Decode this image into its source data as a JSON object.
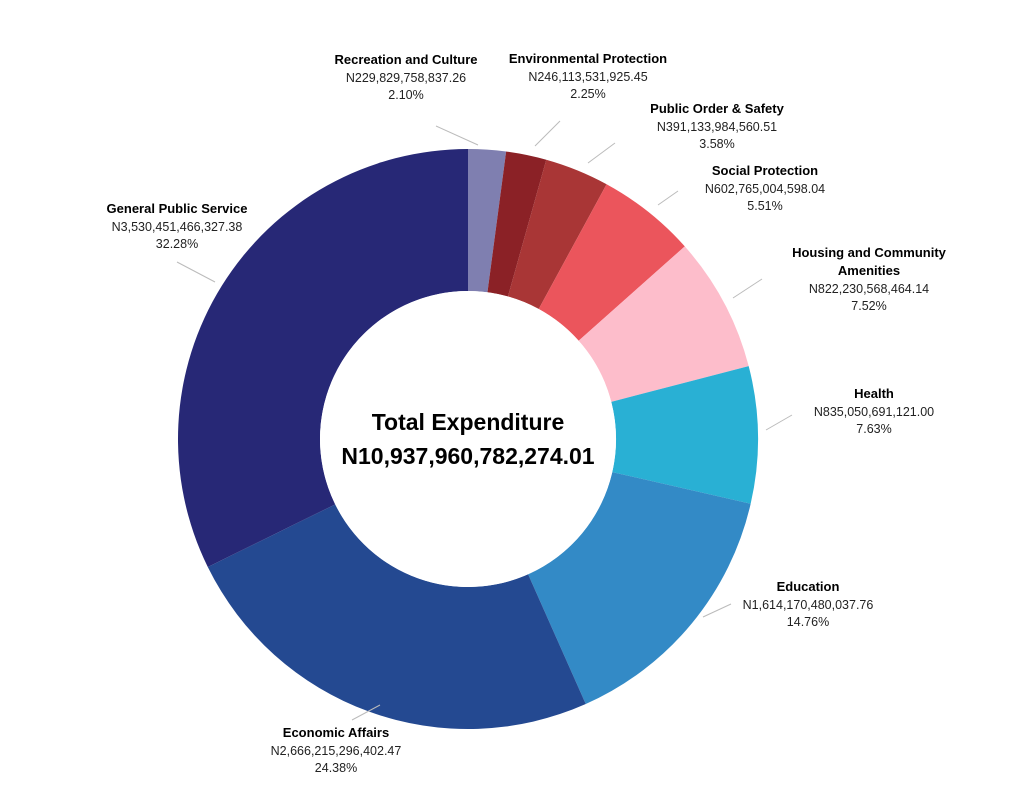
{
  "chart_data": {
    "type": "pie",
    "center_title": "Total Expenditure",
    "center_value": "N10,937,960,782,274.01",
    "slices": [
      {
        "name": "Recreation and Culture",
        "amount": "N229,829,758,837.26",
        "percent_label": "2.10%",
        "value": 2.1,
        "color": "#7f7fb0"
      },
      {
        "name": "Environmental Protection",
        "amount": "N246,113,531,925.45",
        "percent_label": "2.25%",
        "value": 2.25,
        "color": "#8b2126"
      },
      {
        "name": "Public Order & Safety",
        "amount": "N391,133,984,560.51",
        "percent_label": "3.58%",
        "value": 3.58,
        "color": "#a93636"
      },
      {
        "name": "Social Protection",
        "amount": "N602,765,004,598.04",
        "percent_label": "5.51%",
        "value": 5.51,
        "color": "#eb555c"
      },
      {
        "name": "Housing and Community Amenities",
        "amount": "N822,230,568,464.14",
        "percent_label": "7.52%",
        "value": 7.52,
        "color": "#fdbdcb"
      },
      {
        "name": "Health",
        "amount": "N835,050,691,121.00",
        "percent_label": "7.63%",
        "value": 7.63,
        "color": "#29b0d4"
      },
      {
        "name": "Education",
        "amount": "N1,614,170,480,037.76",
        "percent_label": "14.76%",
        "value": 14.76,
        "color": "#338ac6"
      },
      {
        "name": "Economic Affairs",
        "amount": "N2,666,215,296,402.47",
        "percent_label": "24.38%",
        "value": 24.38,
        "color": "#244991"
      },
      {
        "name": "General Public Service",
        "amount": "N3,530,451,466,327.38",
        "percent_label": "32.28%",
        "value": 32.28,
        "color": "#272876"
      }
    ]
  }
}
